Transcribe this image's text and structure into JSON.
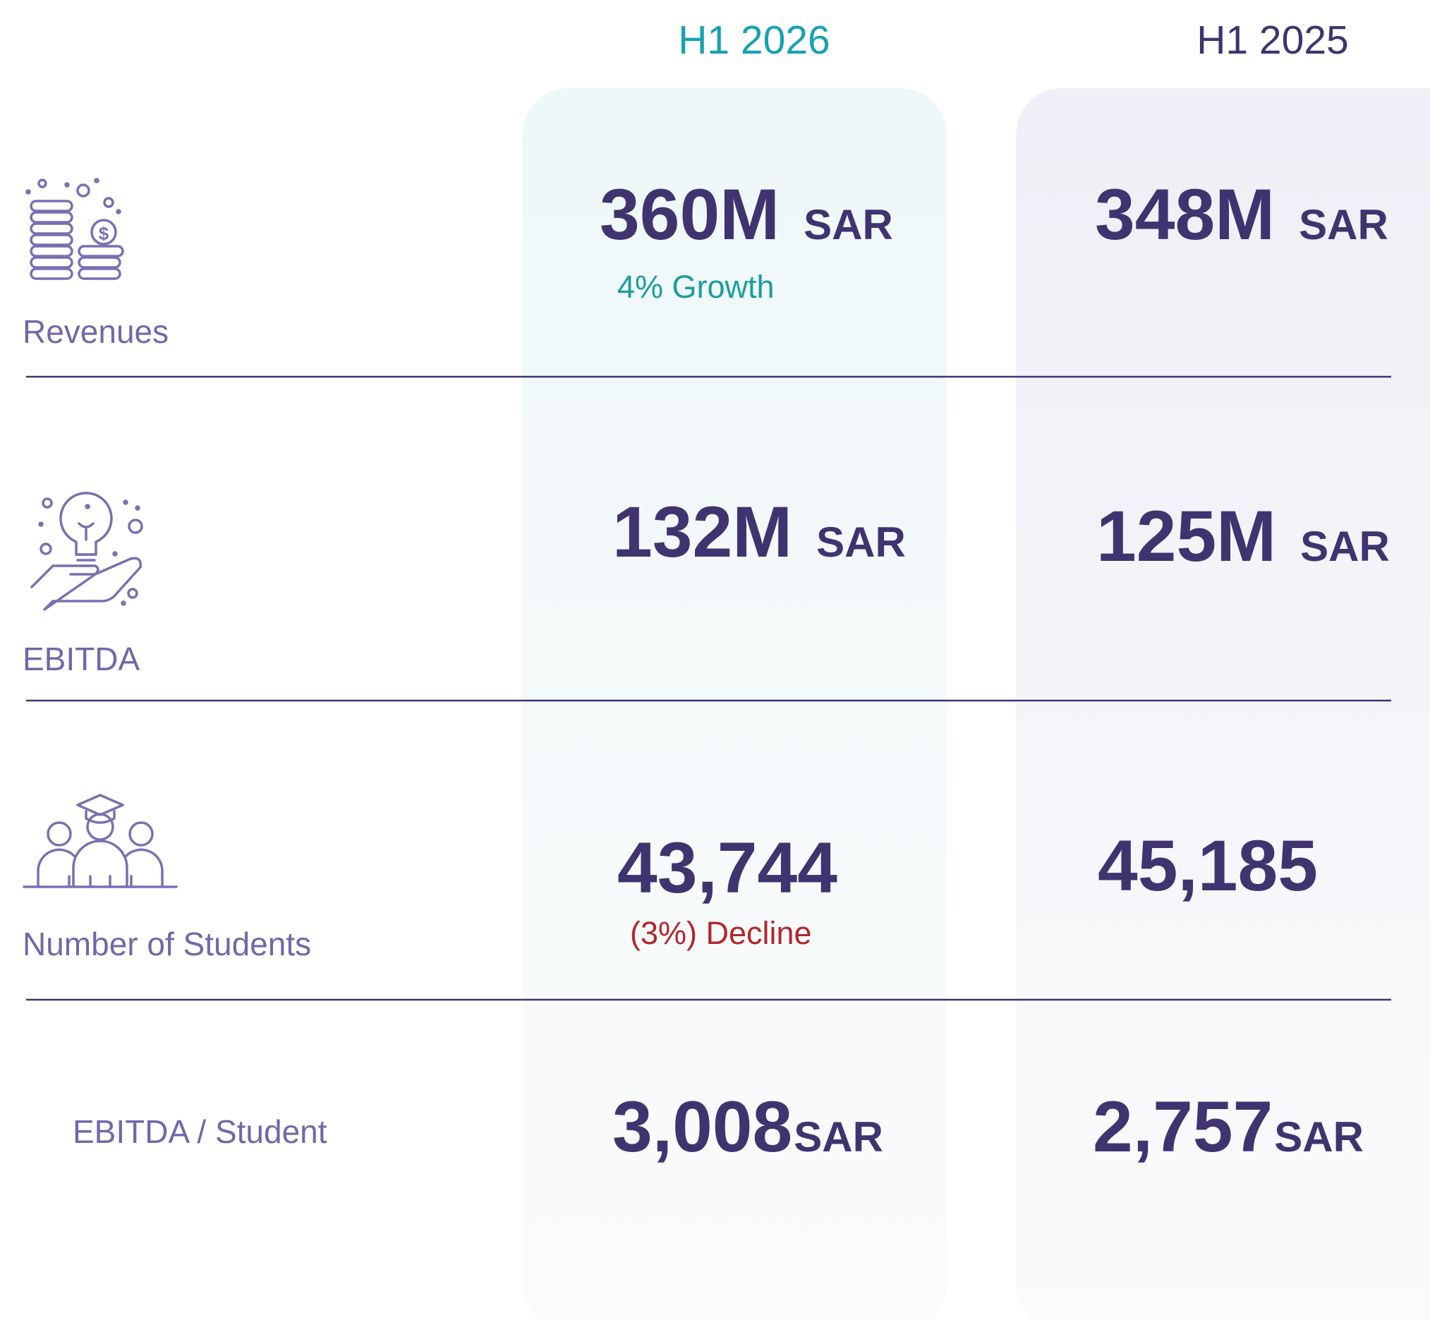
{
  "columns": [
    "H1 2026",
    "H1 2025"
  ],
  "rows": [
    {
      "label": "Revenues",
      "current": {
        "value": "360M",
        "unit": "SAR"
      },
      "previous": {
        "value": "348M",
        "unit": "SAR"
      },
      "note": "4% Growth",
      "note_color": "#1a9e9e"
    },
    {
      "label": "EBITDA",
      "current": {
        "value": "132M",
        "unit": "SAR"
      },
      "previous": {
        "value": "125M",
        "unit": "SAR"
      }
    },
    {
      "label": "Number of Students",
      "current": {
        "value": "43,744"
      },
      "previous": {
        "value": "45,185"
      },
      "note": "(3%) Decline",
      "note_color": "#b3262e"
    },
    {
      "label": "EBITDA / Student",
      "current": {
        "value": "3,008",
        "unit": "SAR"
      },
      "previous": {
        "value": "2,757",
        "unit": "SAR"
      }
    }
  ]
}
